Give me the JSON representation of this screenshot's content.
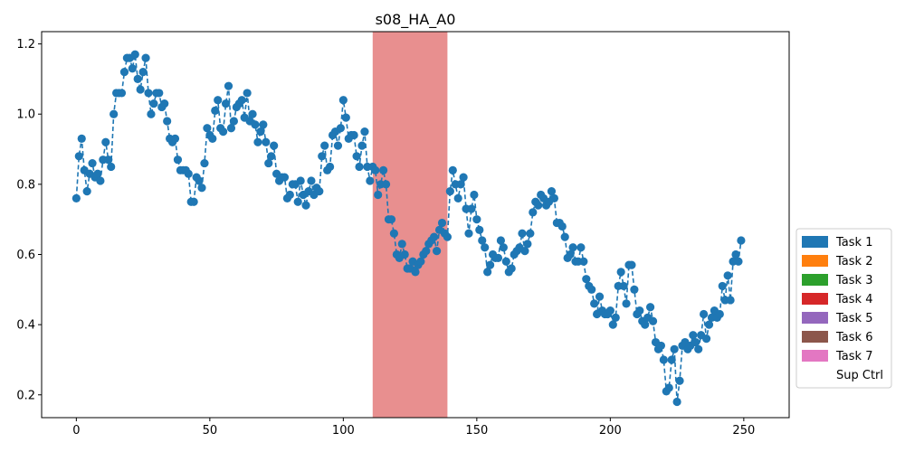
{
  "chart_data": {
    "type": "line",
    "title": "s08_HA_A0",
    "xlabel": "",
    "ylabel": "",
    "xlim": [
      -13,
      267
    ],
    "ylim": [
      0.135,
      1.235
    ],
    "x_ticks": [
      0,
      50,
      100,
      150,
      200,
      250
    ],
    "y_ticks": [
      0.2,
      0.4,
      0.6,
      0.8,
      1.0,
      1.2
    ],
    "x_tick_labels": [
      "0",
      "50",
      "100",
      "150",
      "200",
      "250"
    ],
    "y_tick_labels": [
      "0.2",
      "0.4",
      "0.6",
      "0.8",
      "1.0",
      "1.2"
    ],
    "grid": false,
    "legend_placement": "right-outside",
    "highlight_region": {
      "x_start": 111,
      "x_end": 139,
      "color": "#e88f8f"
    },
    "series": [
      {
        "color": "#1f77b4",
        "line_style": "dashed",
        "marker": "circle",
        "x_start": 0,
        "values": [
          0.76,
          0.88,
          0.93,
          0.84,
          0.78,
          0.83,
          0.86,
          0.82,
          0.83,
          0.81,
          0.87,
          0.92,
          0.87,
          0.85,
          1.0,
          1.06,
          1.06,
          1.06,
          1.12,
          1.16,
          1.16,
          1.13,
          1.17,
          1.1,
          1.07,
          1.12,
          1.16,
          1.06,
          1.0,
          1.03,
          1.06,
          1.06,
          1.02,
          1.03,
          0.98,
          0.93,
          0.92,
          0.93,
          0.87,
          0.84,
          0.84,
          0.84,
          0.83,
          0.75,
          0.75,
          0.82,
          0.81,
          0.79,
          0.86,
          0.96,
          0.94,
          0.93,
          1.01,
          1.04,
          0.96,
          0.95,
          1.03,
          1.08,
          0.96,
          0.98,
          1.02,
          1.03,
          1.04,
          0.99,
          1.06,
          0.98,
          1.0,
          0.97,
          0.92,
          0.95,
          0.97,
          0.92,
          0.86,
          0.88,
          0.91,
          0.83,
          0.81,
          0.82,
          0.82,
          0.76,
          0.77,
          0.8,
          0.8,
          0.75,
          0.81,
          0.77,
          0.74,
          0.78,
          0.81,
          0.77,
          0.79,
          0.78,
          0.88,
          0.91,
          0.84,
          0.85,
          0.94,
          0.95,
          0.91,
          0.96,
          1.04,
          0.99,
          0.93,
          0.94,
          0.94,
          0.88,
          0.85,
          0.91,
          0.95,
          0.85,
          0.81,
          0.85,
          0.84,
          0.77,
          0.8,
          0.84,
          0.8,
          0.7,
          0.7,
          0.66,
          0.6,
          0.59,
          0.63,
          0.6,
          0.56,
          0.56,
          0.58,
          0.55,
          0.57,
          0.58,
          0.6,
          0.61,
          0.63,
          0.64,
          0.65,
          0.61,
          0.67,
          0.69,
          0.66,
          0.65,
          0.78,
          0.84,
          0.8,
          0.76,
          0.8,
          0.82,
          0.73,
          0.66,
          0.73,
          0.77,
          0.7,
          0.67,
          0.64,
          0.62,
          0.55,
          0.57,
          0.6,
          0.59,
          0.59,
          0.64,
          0.62,
          0.58,
          0.55,
          0.56,
          0.6,
          0.61,
          0.62,
          0.66,
          0.61,
          0.63,
          0.66,
          0.72,
          0.75,
          0.74,
          0.77,
          0.76,
          0.74,
          0.75,
          0.78,
          0.76,
          0.69,
          0.69,
          0.68,
          0.65,
          0.59,
          0.6,
          0.62,
          0.58,
          0.58,
          0.62,
          0.58,
          0.53,
          0.51,
          0.5,
          0.46,
          0.43,
          0.48,
          0.44,
          0.43,
          0.43,
          0.44,
          0.4,
          0.42,
          0.51,
          0.55,
          0.51,
          0.46,
          0.57,
          0.57,
          0.5,
          0.43,
          0.44,
          0.41,
          0.4,
          0.42,
          0.45,
          0.41,
          0.35,
          0.33,
          0.34,
          0.3,
          0.21,
          0.22,
          0.3,
          0.33,
          0.18,
          0.24,
          0.34,
          0.35,
          0.33,
          0.34,
          0.37,
          0.35,
          0.33,
          0.37,
          0.43,
          0.36,
          0.4,
          0.42,
          0.44,
          0.42,
          0.43,
          0.51,
          0.47,
          0.54,
          0.47,
          0.58,
          0.6,
          0.58,
          0.64
        ]
      }
    ],
    "legend": [
      {
        "label": "Task 1",
        "color": "#1f77b4"
      },
      {
        "label": "Task 2",
        "color": "#ff7f0e"
      },
      {
        "label": "Task 3",
        "color": "#2ca02c"
      },
      {
        "label": "Task 4",
        "color": "#d62728"
      },
      {
        "label": "Task 5",
        "color": "#9467bd"
      },
      {
        "label": "Task 6",
        "color": "#8c564b"
      },
      {
        "label": "Task 7",
        "color": "#e377c2"
      },
      {
        "label": "Sup Ctrl",
        "color": "#ffffff"
      }
    ]
  }
}
